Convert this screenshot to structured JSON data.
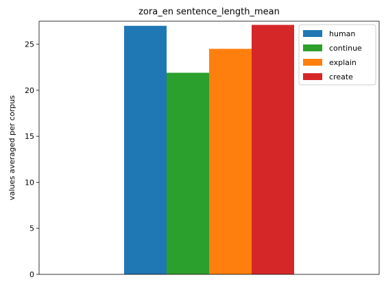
{
  "chart_data": {
    "type": "bar",
    "title": "zora_en sentence_length_mean",
    "xlabel": "",
    "ylabel": "values averaged per corpus",
    "ylim": [
      0,
      27.5
    ],
    "yticks": [
      0,
      5,
      10,
      15,
      20,
      25
    ],
    "grid": false,
    "legend_position": "top-right",
    "series": [
      {
        "name": "human",
        "value": 27.0,
        "color": "#1f77b4"
      },
      {
        "name": "continue",
        "value": 21.9,
        "color": "#2ca02c"
      },
      {
        "name": "explain",
        "value": 24.5,
        "color": "#ff7f0e"
      },
      {
        "name": "create",
        "value": 27.1,
        "color": "#d62728"
      }
    ]
  }
}
